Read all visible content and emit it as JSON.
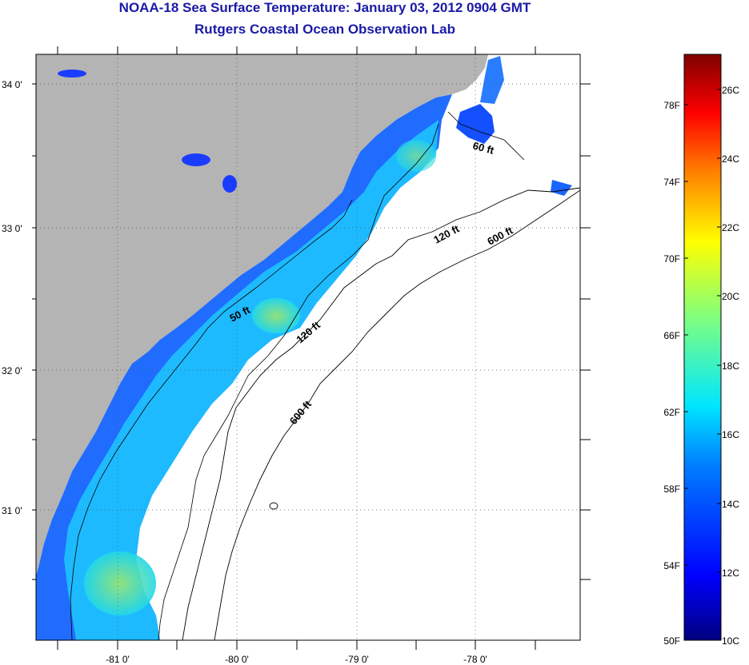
{
  "title": "NOAA-18 Sea Surface Temperature:  January 03, 2012 0904 GMT",
  "subtitle": "Rutgers Coastal Ocean Observation Lab",
  "map": {
    "lat_labels": [
      "34 0'",
      "33 0'",
      "32 0'",
      "31 0'"
    ],
    "lon_labels": [
      "-81 0'",
      "-80 0'",
      "-79 0'",
      "-78 0'"
    ],
    "contours": [
      {
        "label": "60 ft",
        "depth": "60 ft"
      },
      {
        "label": "50 ft",
        "depth": "50 ft"
      },
      {
        "label": "120 ft",
        "depth": "120 ft"
      },
      {
        "label": "120 ft",
        "depth": "120 ft"
      },
      {
        "label": "600 ft",
        "depth": "600 ft"
      },
      {
        "label": "600 ft",
        "depth": "600 ft"
      }
    ],
    "colors": {
      "land": "#b4b4b4",
      "no_data": "#ffffff",
      "title": "#1a1aa6"
    }
  },
  "colorbar": {
    "fahrenheit_labels": [
      "78F",
      "74F",
      "70F",
      "66F",
      "62F",
      "58F",
      "54F",
      "50F"
    ],
    "celsius_labels": [
      "26C",
      "24C",
      "22C",
      "20C",
      "18C",
      "16C",
      "14C",
      "12C",
      "10C"
    ],
    "min_c": 10,
    "max_c": 27,
    "palette": [
      "#00007f",
      "#0000ff",
      "#007fff",
      "#00ffff",
      "#7fff7f",
      "#ffff00",
      "#ff7f00",
      "#ff0000",
      "#7f0000"
    ]
  }
}
